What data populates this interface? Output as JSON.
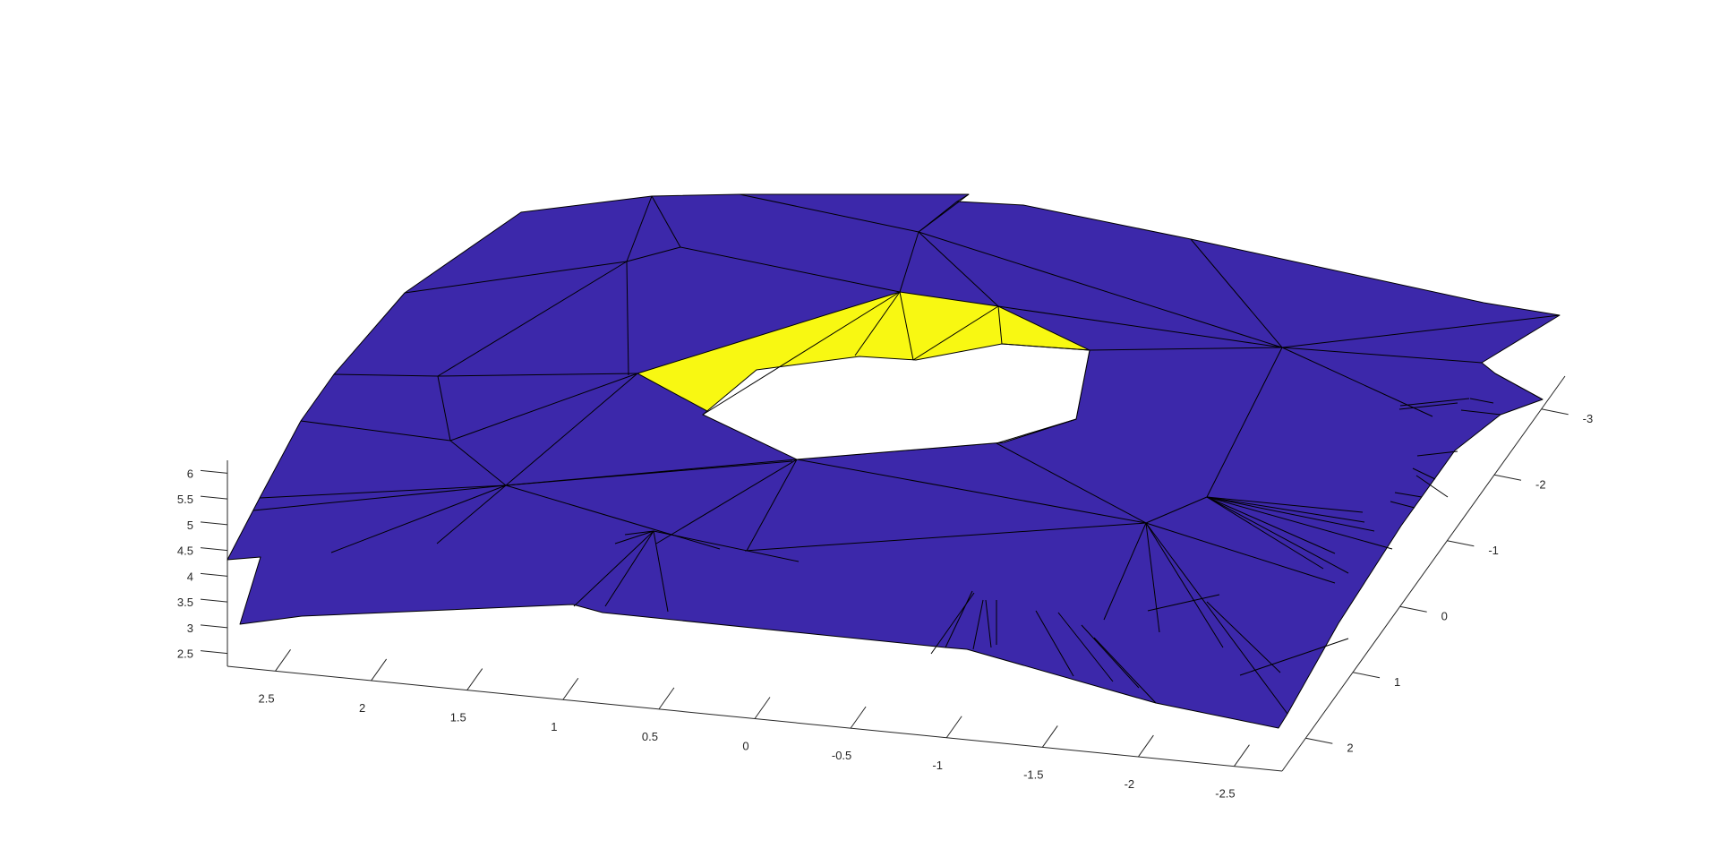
{
  "chart_data": {
    "type": "surface3d",
    "title": "",
    "xlabel": "",
    "ylabel": "",
    "zlabel": "",
    "colors": {
      "surface": "#3c28aa",
      "inner_ring": "#f8f812",
      "mesh_edge": "#000000",
      "axis": "#262626",
      "background": "#ffffff"
    },
    "grid": false,
    "x_axis": {
      "range": [
        -2.75,
        2.75
      ],
      "ticks": [
        2.5,
        2,
        1.5,
        1,
        0.5,
        0,
        -0.5,
        -1,
        -1.5,
        -2,
        -2.5
      ],
      "tick_labels": [
        "2.5",
        "2",
        "1.5",
        "1",
        "0.5",
        "0",
        "-0.5",
        "-1",
        "-1.5",
        "-2",
        "-2.5"
      ]
    },
    "y_axis": {
      "range": [
        -3.5,
        2.5
      ],
      "ticks": [
        -3,
        -2,
        -1,
        0,
        1,
        2
      ],
      "tick_labels": [
        "-3",
        "-2",
        "-1",
        "0",
        "1",
        "2"
      ]
    },
    "z_axis": {
      "range": [
        2.25,
        6.25
      ],
      "ticks": [
        2.5,
        3,
        3.5,
        4,
        4.5,
        5,
        5.5,
        6
      ],
      "tick_labels": [
        "2.5",
        "3",
        "3.5",
        "4",
        "4.5",
        "5",
        "5.5",
        "6"
      ]
    }
  }
}
